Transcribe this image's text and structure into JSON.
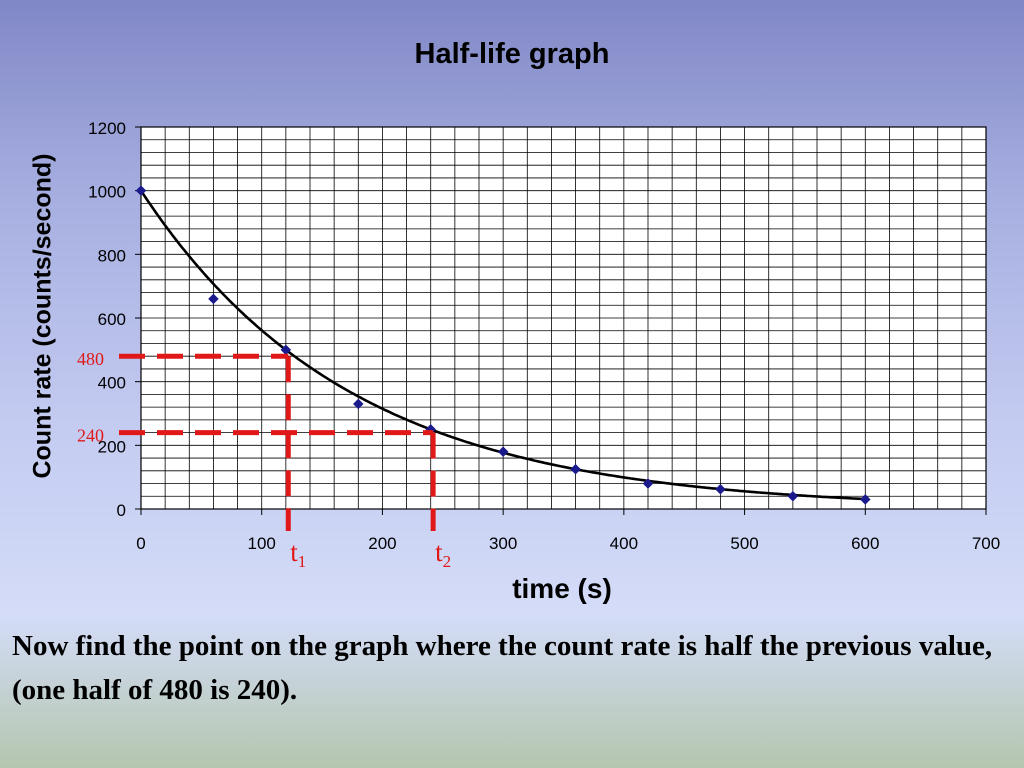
{
  "caption": "Now find the point on the graph where the count rate is half the previous value, (one half of 480 is 240).",
  "chart_data": {
    "type": "scatter",
    "title": "Half-life graph",
    "xlabel": "time (s)",
    "ylabel": "Count rate (counts/second)",
    "xlim": [
      0,
      700
    ],
    "ylim": [
      0,
      1200
    ],
    "x_ticks": [
      0,
      100,
      200,
      300,
      400,
      500,
      600,
      700
    ],
    "y_ticks": [
      0,
      200,
      400,
      600,
      800,
      1000,
      1200
    ],
    "grid": true,
    "series": [
      {
        "x": [
          0,
          60,
          120,
          180,
          240,
          300,
          360,
          420,
          480,
          540,
          600
        ],
        "y": [
          1000,
          660,
          500,
          330,
          250,
          180,
          125,
          80,
          62,
          40,
          30
        ],
        "marker": "diamond",
        "color": "#1a1a8c"
      }
    ],
    "trendline": {
      "type": "exponential",
      "a": 1000,
      "halflife": 120,
      "color": "#000000"
    },
    "annotations": [
      {
        "y": 480,
        "label": "480",
        "x_time": 122,
        "time_label": "t",
        "time_sub": "1",
        "color": "#e01818"
      },
      {
        "y": 240,
        "label": "240",
        "x_time": 242,
        "time_label": "t",
        "time_sub": "2",
        "color": "#e01818"
      }
    ]
  }
}
